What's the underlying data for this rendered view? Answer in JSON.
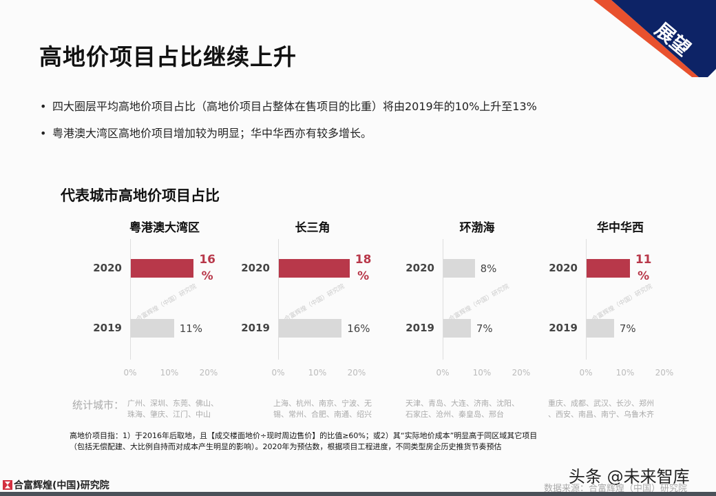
{
  "corner_tag": "展望",
  "title": "高地价项目占比继续上升",
  "bullets": [
    "四大圈层平均高地价项目占比（高地价项目占整体在售项目的比重）将由2019年的10%上升至13%",
    "粤港澳大湾区高地价项目增加较为明显；华中华西亦有较多增长。"
  ],
  "subtitle": "代表城市高地价项目占比",
  "colors": {
    "highlight": "#b8384a",
    "base": "#d9d9d9",
    "navy": "#0d2366",
    "orange": "#e8512e"
  },
  "watermark": "合富辉煌（中国）研究院",
  "chart_data": [
    {
      "type": "bar",
      "orientation": "horizontal",
      "title": "粤港澳大湾区",
      "categories": [
        "2020",
        "2019"
      ],
      "values": [
        16,
        11
      ],
      "labels": [
        "16%",
        "11%"
      ],
      "xlim": [
        0,
        20
      ],
      "ticks": [
        "0%",
        "10%",
        "20%"
      ],
      "highlight_2020": true
    },
    {
      "type": "bar",
      "orientation": "horizontal",
      "title": "长三角",
      "categories": [
        "2020",
        "2019"
      ],
      "values": [
        18,
        16
      ],
      "labels": [
        "18%",
        "16%"
      ],
      "xlim": [
        0,
        20
      ],
      "ticks": [
        "0%",
        "10%",
        "20%"
      ],
      "highlight_2020": true
    },
    {
      "type": "bar",
      "orientation": "horizontal",
      "title": "环渤海",
      "categories": [
        "2020",
        "2019"
      ],
      "values": [
        8,
        7
      ],
      "labels": [
        "8%",
        "7%"
      ],
      "xlim": [
        0,
        20
      ],
      "ticks": [
        "0%",
        "10%",
        "20%"
      ],
      "highlight_2020": false
    },
    {
      "type": "bar",
      "orientation": "horizontal",
      "title": "华中华西",
      "categories": [
        "2020",
        "2019"
      ],
      "values": [
        11,
        7
      ],
      "labels": [
        "11%",
        "7%"
      ],
      "xlim": [
        0,
        20
      ],
      "ticks": [
        "0%",
        "10%",
        "20%"
      ],
      "highlight_2020": true
    }
  ],
  "cities_label": "统计城市：",
  "cities": [
    [
      "广州、深圳、东莞、佛山、",
      "珠海、肇庆、江门、中山"
    ],
    [
      "上海、杭州、南京、宁波、无",
      "锡、常州、合肥、南通、绍兴"
    ],
    [
      "天津、青岛、大连、济南、沈阳、",
      "石家庄、沧州、秦皇岛、邢台"
    ],
    [
      "重庆、成都、武汉、长沙、郑州",
      "、西安、南昌、南宁、乌鲁木齐"
    ]
  ],
  "note": [
    "高地价项目指：1）于2016年后取地，且【成交楼面地价÷现时周边售价】的比值≥60%；或2）其“实际地价成本”明显高于同区域其它项目",
    "（包括无偿配建、大比例自持而对成本产生明显的影响）。2020年为预估数，根据项目工程进度，不同类型房企历史推货节奏预估"
  ],
  "footer": {
    "logo_text": "合富辉煌(中国)研究院",
    "source": "数据来源：合富辉煌（中国）研究院",
    "platform_watermark": "头条 @未来智库"
  }
}
